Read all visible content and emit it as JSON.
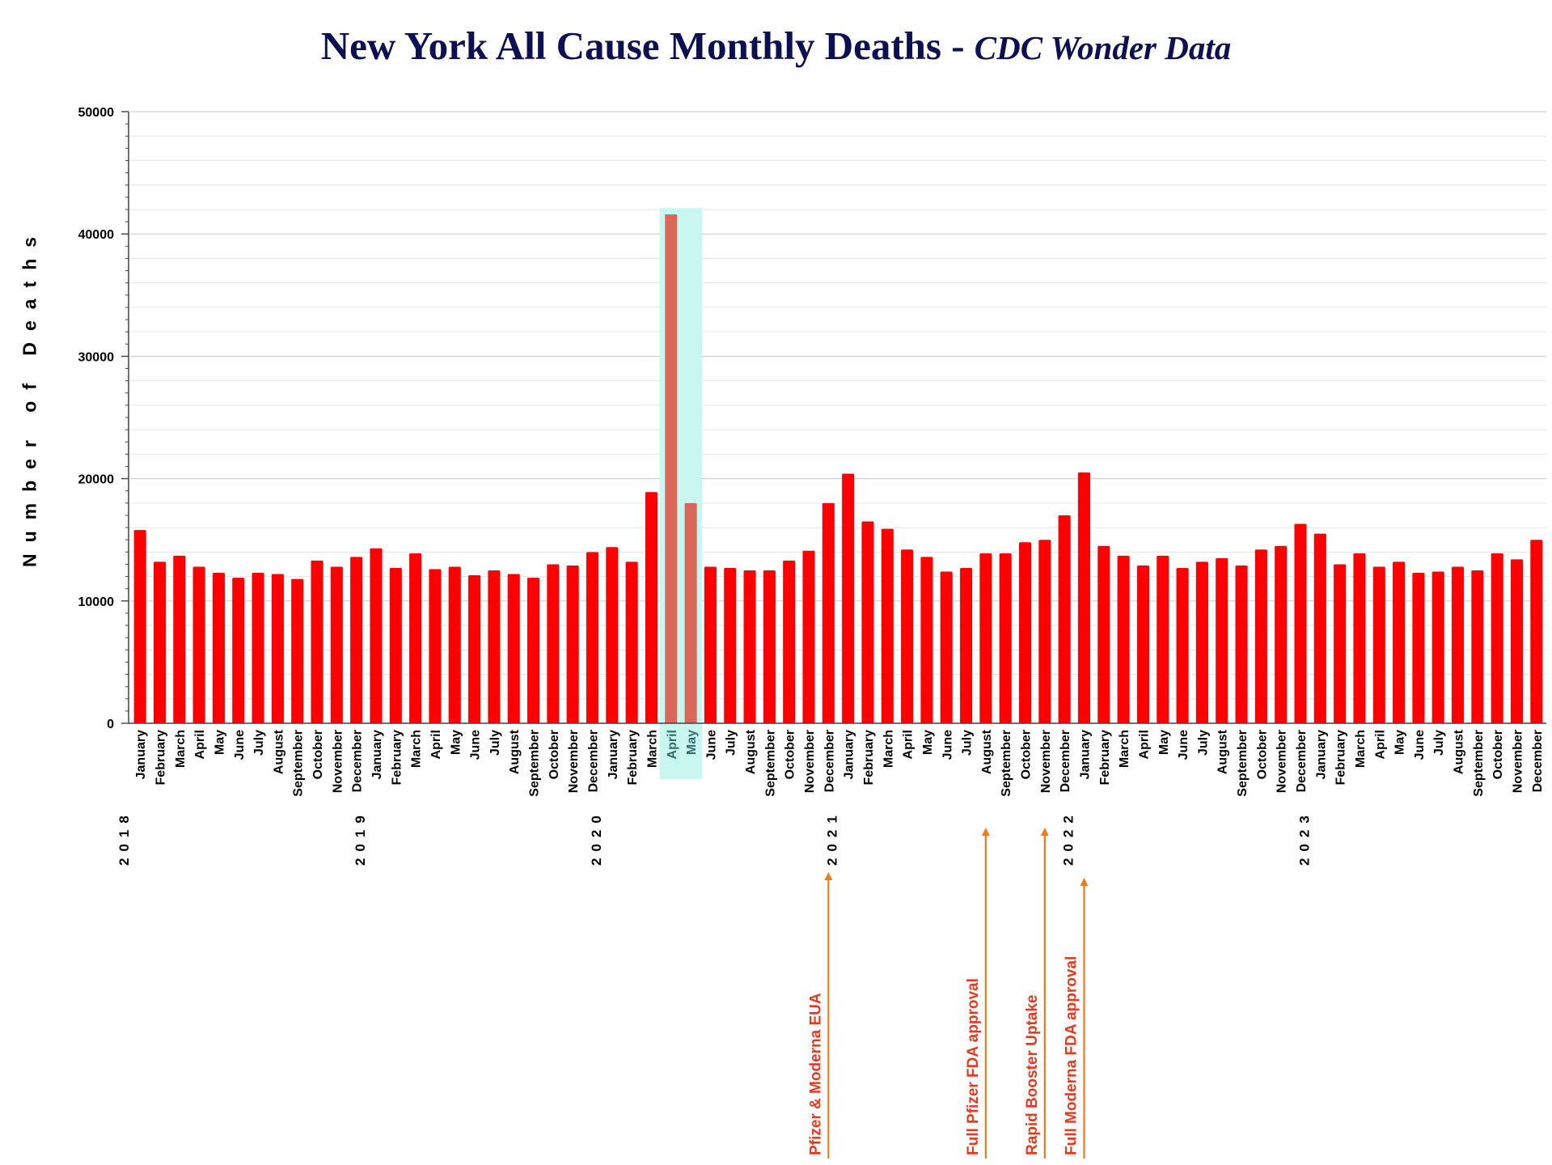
{
  "chart_data": {
    "type": "bar",
    "title": "New York All Cause Monthly Deaths - ",
    "subtitle": "CDC Wonder Data",
    "xlabel": "",
    "ylabel": "Number of Deaths",
    "ylim": [
      0,
      50000
    ],
    "yticks": [
      0,
      10000,
      20000,
      30000,
      40000,
      50000
    ],
    "grid": true,
    "bar_color": "#ff0000",
    "highlight_bar_color": "#d9675a",
    "highlight_fill": "#c8f7f0",
    "annotation_color": "#e43a1f",
    "arrow_color": "#f07a1e",
    "year_labels": [
      "2018",
      "2019",
      "2020",
      "2021",
      "2022",
      "2023"
    ],
    "highlighted_categories": [
      27,
      28
    ],
    "categories": [
      "January",
      "February",
      "March",
      "April",
      "May",
      "June",
      "July",
      "August",
      "September",
      "October",
      "November",
      "December",
      "January",
      "February",
      "March",
      "April",
      "May",
      "June",
      "July",
      "August",
      "September",
      "October",
      "November",
      "December",
      "January",
      "February",
      "March",
      "April",
      "May",
      "June",
      "July",
      "August",
      "September",
      "October",
      "November",
      "December",
      "January",
      "February",
      "March",
      "April",
      "May",
      "June",
      "July",
      "August",
      "September",
      "October",
      "November",
      "December",
      "January",
      "February",
      "March",
      "April",
      "May",
      "June",
      "July",
      "August",
      "September",
      "October",
      "November",
      "December",
      "January",
      "February",
      "March",
      "April",
      "May",
      "June",
      "July",
      "August",
      "September",
      "October",
      "November",
      "December"
    ],
    "values": [
      15800,
      13200,
      13700,
      12800,
      12300,
      11900,
      12300,
      12200,
      11800,
      13300,
      12800,
      13600,
      14300,
      12700,
      13900,
      12600,
      12800,
      12100,
      12500,
      12200,
      11900,
      13000,
      12900,
      14000,
      14400,
      13200,
      18900,
      41600,
      18000,
      12800,
      12700,
      12500,
      12500,
      13300,
      14100,
      18000,
      20400,
      16500,
      15900,
      14200,
      13600,
      12400,
      12700,
      13900,
      13900,
      14800,
      15000,
      17000,
      20500,
      14500,
      13700,
      12900,
      13700,
      12700,
      13200,
      13500,
      12900,
      14200,
      14500,
      16300,
      15500,
      13000,
      13900,
      12800,
      13200,
      12300,
      12400,
      12800,
      12500,
      13900,
      13400,
      15000
    ],
    "annotations": [
      {
        "text": "Pfizer & Moderna EUA",
        "category_index": 35
      },
      {
        "text": "Full Pfizer FDA approval",
        "category_index": 43
      },
      {
        "text": "Rapid Booster Uptake",
        "category_index": 46
      },
      {
        "text": "Full Moderna FDA approval",
        "category_index": 48
      }
    ]
  }
}
